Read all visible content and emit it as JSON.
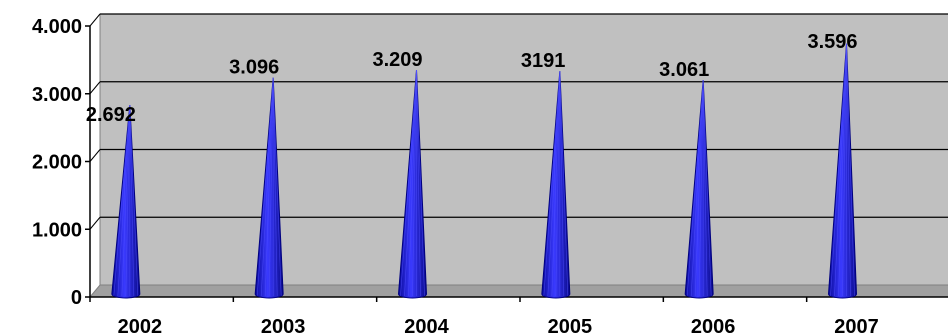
{
  "chart_data": {
    "type": "bar",
    "shape": "cone",
    "title": "",
    "xlabel": "",
    "ylabel": "",
    "categories": [
      "2002",
      "2003",
      "2004",
      "2005",
      "2006",
      "2007"
    ],
    "series": [
      {
        "values": [
          2692,
          3096,
          3209,
          3191,
          3061,
          3596
        ]
      }
    ],
    "data_labels": [
      "2.692",
      "3.096",
      "3.209",
      "3191",
      "3.061",
      "3.596"
    ],
    "y_ticks": [
      {
        "value": 0,
        "label": "0"
      },
      {
        "value": 1000,
        "label": "1.000"
      },
      {
        "value": 2000,
        "label": "2.000"
      },
      {
        "value": 3000,
        "label": "3.000"
      },
      {
        "value": 4000,
        "label": "4.000"
      }
    ],
    "ylim": [
      0,
      4000
    ],
    "grid": true,
    "legend": "none",
    "colors": {
      "plot_background": "#c0c0c0",
      "gridline": "#000000",
      "cone_fill": "#2b2bff",
      "cone_dark": "#000080",
      "wall_edge": "#808080"
    }
  }
}
